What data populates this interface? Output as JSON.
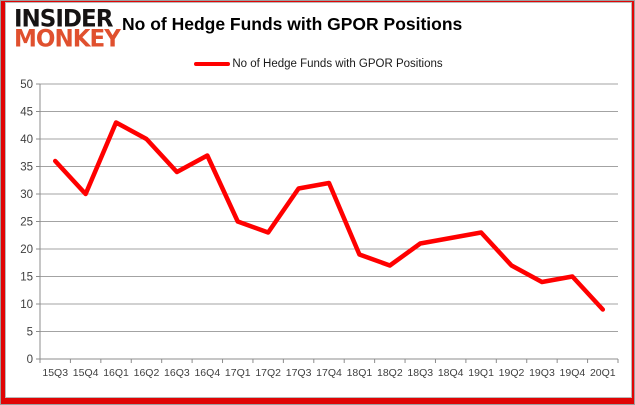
{
  "brand": {
    "line1": "INSIDER",
    "line2": "MONKEY"
  },
  "header": {
    "title": "No of Hedge Funds with GPOR Positions"
  },
  "legend": {
    "label": "No of Hedge Funds with GPOR Positions"
  },
  "chart_data": {
    "type": "line",
    "title": "No of Hedge Funds with GPOR Positions",
    "categories": [
      "15Q3",
      "15Q4",
      "16Q1",
      "16Q2",
      "16Q3",
      "16Q4",
      "17Q1",
      "17Q2",
      "17Q3",
      "17Q4",
      "18Q1",
      "18Q2",
      "18Q3",
      "18Q4",
      "19Q1",
      "19Q2",
      "19Q3",
      "19Q4",
      "20Q1"
    ],
    "series": [
      {
        "name": "No of Hedge Funds with GPOR Positions",
        "values": [
          36,
          30,
          43,
          40,
          34,
          37,
          25,
          23,
          31,
          32,
          19,
          17,
          21,
          22,
          23,
          17,
          14,
          15,
          9
        ],
        "color": "#ff0000"
      }
    ],
    "xlabel": "",
    "ylabel": "",
    "ylim": [
      0,
      50
    ],
    "ytick_step": 5,
    "grid": true,
    "legend_position": "top"
  },
  "colors": {
    "accent": "#ff0000",
    "logo_black": "#161313",
    "logo_red": "#e0502e",
    "border_red": "#e00505",
    "grid": "#a3a3a3",
    "axis": "#8c8c8c",
    "axis_text": "#3f3f3f"
  }
}
